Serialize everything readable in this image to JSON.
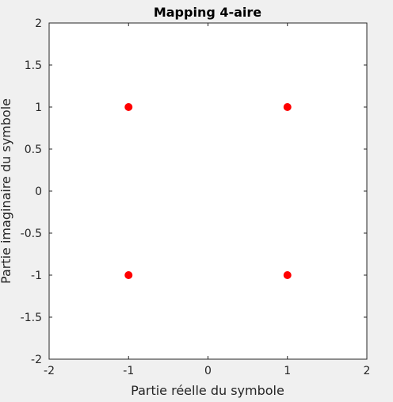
{
  "chart_data": {
    "type": "scatter",
    "title": "Mapping 4-aire",
    "xlabel": "Partie réelle du symbole",
    "ylabel": "Partie imaginaire du symbole",
    "xlim": [
      -2,
      2
    ],
    "ylim": [
      -2,
      2
    ],
    "x_ticks": [
      -2,
      -1,
      0,
      1,
      2
    ],
    "y_ticks": [
      -2,
      -1.5,
      -1,
      -0.5,
      0,
      0.5,
      1,
      1.5,
      2
    ],
    "grid": false,
    "series": [
      {
        "color": "#ff0000",
        "marker": "circle",
        "points": [
          {
            "x": -1,
            "y": 1
          },
          {
            "x": 1,
            "y": 1
          },
          {
            "x": -1,
            "y": -1
          },
          {
            "x": 1,
            "y": -1
          }
        ]
      }
    ]
  }
}
